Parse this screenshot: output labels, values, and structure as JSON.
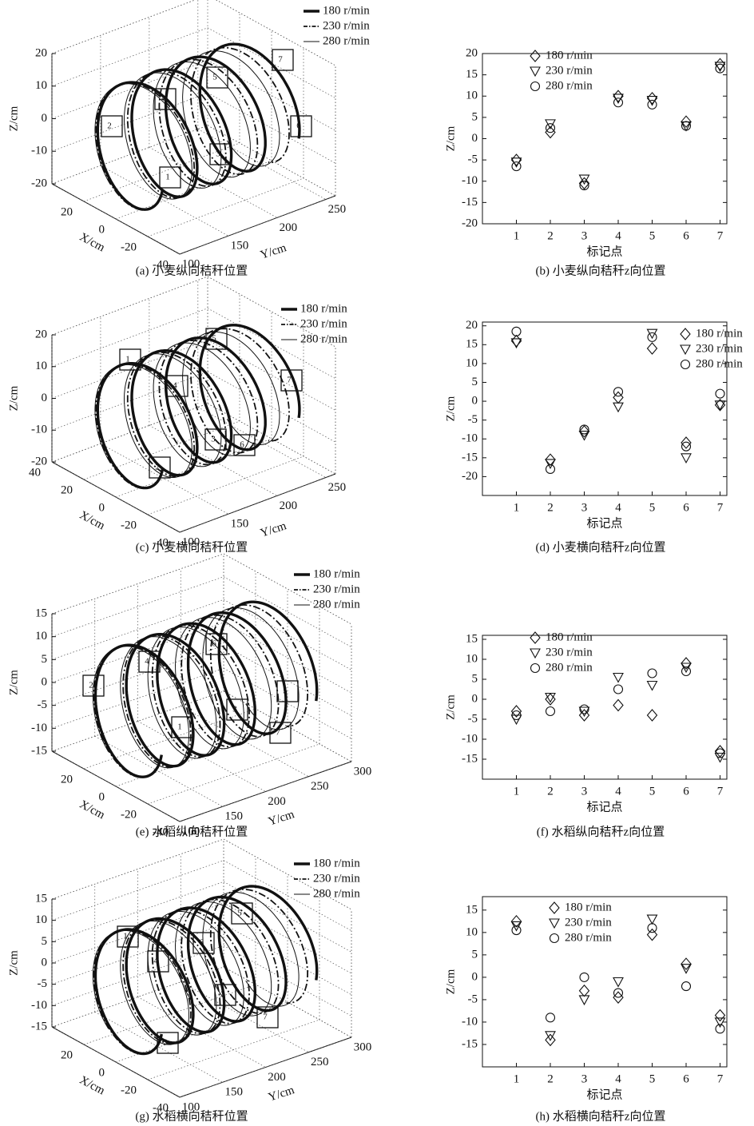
{
  "chart_data": [
    {
      "type": "helix3d",
      "xlabel": "X/cm",
      "ylabel": "Y/cm",
      "zlabel": "Z/cm",
      "xlim": [
        40,
        -40
      ],
      "xticks": [
        20,
        0,
        -20,
        -40
      ],
      "ylim": [
        100,
        260
      ],
      "yticks": [
        100,
        150,
        200,
        250
      ],
      "zlim": [
        -20,
        20
      ],
      "zticks": [
        -20,
        -10,
        0,
        10,
        20
      ],
      "series": [
        {
          "name": "180 r/min",
          "style": "thick"
        },
        {
          "name": "230 r/min",
          "style": "dashdot"
        },
        {
          "name": "280 r/min",
          "style": "thin"
        }
      ],
      "markers": [
        "1",
        "2",
        "3",
        "4",
        "5",
        "6",
        "7"
      ],
      "caption": "(a) 小麦纵向秸秆位置"
    },
    {
      "type": "scatter",
      "categories": [
        "1",
        "2",
        "3",
        "4",
        "5",
        "6",
        "7"
      ],
      "xlabel": "标记点",
      "ylabel": "Z/cm",
      "ylim": [
        -20,
        20
      ],
      "yticks": [
        -20,
        -15,
        -10,
        -5,
        0,
        5,
        10,
        15,
        20
      ],
      "legend": "upper left",
      "series": [
        {
          "name": "180 r/min",
          "marker": "diamond",
          "values": [
            -5,
            1.5,
            -10.5,
            10,
            9.5,
            4,
            17.5
          ]
        },
        {
          "name": "230 r/min",
          "marker": "triangle",
          "values": [
            -5.5,
            3.5,
            -9.5,
            9.5,
            9,
            3,
            17
          ]
        },
        {
          "name": "280 r/min",
          "marker": "circle",
          "values": [
            -6.5,
            2.5,
            -11,
            8.5,
            8,
            3,
            16.5
          ]
        }
      ],
      "caption": "(b) 小麦纵向秸秆z向位置"
    },
    {
      "type": "helix3d",
      "xlabel": "X/cm",
      "ylabel": "Y/cm",
      "zlabel": "Z/cm",
      "xlim": [
        40,
        -40
      ],
      "xticks": [
        40,
        20,
        0,
        -20,
        -40
      ],
      "ylim": [
        100,
        260
      ],
      "yticks": [
        100,
        150,
        200,
        250
      ],
      "zlim": [
        -20,
        20
      ],
      "zticks": [
        -20,
        -10,
        0,
        10,
        20
      ],
      "series": [
        {
          "name": "180 r/min",
          "style": "thick"
        },
        {
          "name": "230 r/min",
          "style": "dashdot"
        },
        {
          "name": "280 r/min",
          "style": "thin"
        }
      ],
      "markers": [
        "1",
        "2",
        "3",
        "4",
        "5",
        "6",
        "7"
      ],
      "caption": "(c) 小麦横向秸秆位置"
    },
    {
      "type": "scatter",
      "categories": [
        "1",
        "2",
        "3",
        "4",
        "5",
        "6",
        "7"
      ],
      "xlabel": "标记点",
      "ylabel": "Z/cm",
      "ylim": [
        -25,
        21
      ],
      "yticks": [
        -20,
        -15,
        -10,
        -5,
        0,
        5,
        10,
        15,
        20
      ],
      "legend": "upper right",
      "series": [
        {
          "name": "180 r/min",
          "marker": "diamond",
          "values": [
            16,
            -15.5,
            -8,
            1,
            14,
            -11,
            -1
          ]
        },
        {
          "name": "230 r/min",
          "marker": "triangle",
          "values": [
            15.5,
            -16.5,
            -9,
            -1.5,
            18,
            -15,
            -1
          ]
        },
        {
          "name": "280 r/min",
          "marker": "circle",
          "values": [
            18.5,
            -18,
            -7.5,
            2.5,
            17,
            -12,
            2
          ]
        }
      ],
      "caption": "(d) 小麦横向秸秆z向位置"
    },
    {
      "type": "helix3d",
      "xlabel": "X/cm",
      "ylabel": "Y/cm",
      "zlabel": "Z/cm",
      "xlim": [
        40,
        -40
      ],
      "xticks": [
        20,
        0,
        -20,
        -40
      ],
      "ylim": [
        100,
        300
      ],
      "yticks": [
        100,
        150,
        200,
        250,
        300
      ],
      "zlim": [
        -15,
        15
      ],
      "zticks": [
        -15,
        -10,
        -5,
        0,
        5,
        10,
        15
      ],
      "series": [
        {
          "name": "180 r/min",
          "style": "thick"
        },
        {
          "name": "230 r/min",
          "style": "dashdot"
        },
        {
          "name": "280 r/min",
          "style": "thin"
        }
      ],
      "markers": [
        "1",
        "2",
        "3",
        "4",
        "5",
        "6",
        "7"
      ],
      "caption": "(e) 水稻纵向秸秆位置"
    },
    {
      "type": "scatter",
      "categories": [
        "1",
        "2",
        "3",
        "4",
        "5",
        "6",
        "7"
      ],
      "xlabel": "标记点",
      "ylabel": "Z/cm",
      "ylim": [
        -20,
        16
      ],
      "yticks": [
        -15,
        -10,
        -5,
        0,
        5,
        10,
        15
      ],
      "legend": "upper left",
      "series": [
        {
          "name": "180 r/min",
          "marker": "diamond",
          "values": [
            -3,
            0,
            -4,
            -1.5,
            -4,
            9,
            -13
          ]
        },
        {
          "name": "230 r/min",
          "marker": "triangle",
          "values": [
            -5,
            0.5,
            -3,
            5.5,
            3.5,
            8,
            -14.5
          ]
        },
        {
          "name": "280 r/min",
          "marker": "circle",
          "values": [
            -4,
            -3,
            -2.5,
            2.5,
            6.5,
            7,
            -13.5
          ]
        }
      ],
      "caption": "(f) 水稻纵向秸秆z向位置"
    },
    {
      "type": "helix3d",
      "xlabel": "X/cm",
      "ylabel": "Y/cm",
      "zlabel": "Z/cm",
      "xlim": [
        40,
        -40
      ],
      "xticks": [
        20,
        0,
        -20,
        -40
      ],
      "ylim": [
        100,
        300
      ],
      "yticks": [
        100,
        150,
        200,
        250,
        300
      ],
      "zlim": [
        -15,
        15
      ],
      "zticks": [
        -15,
        -10,
        -5,
        0,
        5,
        10,
        15
      ],
      "series": [
        {
          "name": "180 r/min",
          "style": "thick"
        },
        {
          "name": "230 r/min",
          "style": "dashdot"
        },
        {
          "name": "280 r/min",
          "style": "thin"
        }
      ],
      "markers": [
        "1",
        "2",
        "3",
        "4",
        "5",
        "6",
        "7"
      ],
      "caption": "(g) 水稻横向秸秆位置"
    },
    {
      "type": "scatter",
      "categories": [
        "1",
        "2",
        "3",
        "4",
        "5",
        "6",
        "7"
      ],
      "xlabel": "标记点",
      "ylabel": "Z/cm",
      "ylim": [
        -20,
        18
      ],
      "yticks": [
        -15,
        -10,
        -5,
        0,
        5,
        10,
        15
      ],
      "legend": "upper center",
      "series": [
        {
          "name": "180 r/min",
          "marker": "diamond",
          "values": [
            12.5,
            -14,
            -3,
            -4.5,
            9.5,
            3,
            -8.5
          ]
        },
        {
          "name": "230 r/min",
          "marker": "triangle",
          "values": [
            11.5,
            -13,
            -5,
            -1,
            13,
            2,
            -10
          ]
        },
        {
          "name": "280 r/min",
          "marker": "circle",
          "values": [
            10.5,
            -9,
            0,
            -3.5,
            11,
            -2,
            -11.5
          ]
        }
      ],
      "caption": "(h) 水稻横向秸秆z向位置"
    }
  ]
}
